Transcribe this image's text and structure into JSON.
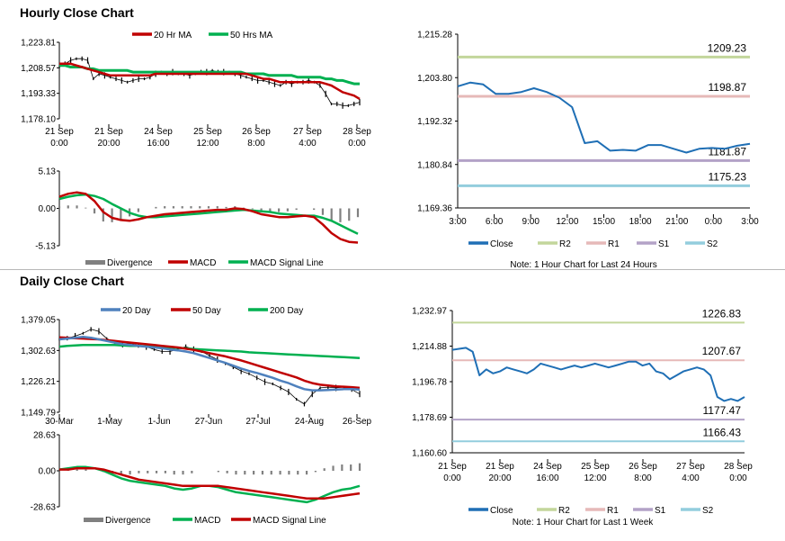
{
  "hourly": {
    "title": "Hourly Close Chart",
    "price_chart": {
      "type": "line",
      "legend": [
        "20 Hr MA",
        "50 Hrs MA"
      ],
      "y_ticks": [
        "1,223.81",
        "1,208.57",
        "1,193.33",
        "1,178.10"
      ],
      "ylim": [
        1178.1,
        1223.81
      ],
      "x_ticks": [
        [
          "21 Sep",
          "0:00"
        ],
        [
          "21 Sep",
          "20:00"
        ],
        [
          "24 Sep",
          "16:00"
        ],
        [
          "25 Sep",
          "12:00"
        ],
        [
          "26 Sep",
          "8:00"
        ],
        [
          "27 Sep",
          "4:00"
        ],
        [
          "28 Sep",
          "0:00"
        ]
      ],
      "series": [
        {
          "name": "Price",
          "values": [
            1209,
            1211,
            1213,
            1214,
            1214,
            1213,
            1202,
            1205,
            1204,
            1203,
            1202,
            1201,
            1200,
            1201,
            1202,
            1202,
            1203,
            1205,
            1206,
            1205,
            1206,
            1205,
            1205,
            1204,
            1205,
            1206,
            1206,
            1207,
            1206,
            1206,
            1206,
            1205,
            1204,
            1203,
            1202,
            1201,
            1201,
            1200,
            1199,
            1198,
            1200,
            1199,
            1200,
            1200,
            1201,
            1200,
            1198,
            1193,
            1187,
            1187,
            1186,
            1186,
            1187,
            1188
          ]
        },
        {
          "name": "20 Hr MA",
          "values": [
            1211,
            1211,
            1211,
            1210,
            1209,
            1208,
            1207,
            1206,
            1205,
            1204,
            1204,
            1204,
            1204,
            1204,
            1204,
            1204,
            1204,
            1205,
            1205,
            1205,
            1205,
            1205,
            1205,
            1205,
            1205,
            1205,
            1205,
            1205,
            1205,
            1205,
            1205,
            1205,
            1205,
            1205,
            1204,
            1203,
            1202,
            1202,
            1201,
            1200,
            1200,
            1200,
            1200,
            1200,
            1200,
            1200,
            1200,
            1199,
            1198,
            1196,
            1194,
            1193,
            1192,
            1190
          ]
        },
        {
          "name": "50 Hrs MA",
          "values": [
            1210,
            1210,
            1209,
            1209,
            1209,
            1208,
            1208,
            1207,
            1207,
            1207,
            1207,
            1207,
            1207,
            1206,
            1206,
            1206,
            1206,
            1206,
            1206,
            1206,
            1206,
            1206,
            1206,
            1206,
            1206,
            1206,
            1206,
            1206,
            1206,
            1206,
            1206,
            1206,
            1206,
            1205,
            1205,
            1205,
            1205,
            1204,
            1204,
            1204,
            1204,
            1204,
            1203,
            1203,
            1203,
            1203,
            1203,
            1202,
            1202,
            1201,
            1201,
            1200,
            1199,
            1199
          ]
        }
      ]
    },
    "macd_chart": {
      "type": "line",
      "legend": [
        "Divergence",
        "MACD",
        "MACD Signal Line"
      ],
      "y_ticks": [
        "5.13",
        "0.00",
        "-5.13"
      ],
      "ylim": [
        -5.13,
        5.13
      ],
      "series": [
        {
          "name": "MACD",
          "values": [
            1.6,
            2.0,
            2.2,
            2.0,
            1.0,
            -0.5,
            -1.3,
            -1.6,
            -1.7,
            -1.5,
            -1.2,
            -1.0,
            -0.8,
            -0.7,
            -0.6,
            -0.5,
            -0.4,
            -0.3,
            -0.2,
            -0.2,
            0.0,
            -0.1,
            -0.4,
            -0.8,
            -1.0,
            -1.2,
            -1.2,
            -1.1,
            -1.0,
            -1.2,
            -2.2,
            -3.4,
            -4.2,
            -4.6,
            -4.7
          ]
        },
        {
          "name": "MACD Signal Line",
          "values": [
            1.3,
            1.6,
            1.8,
            1.9,
            1.7,
            1.3,
            0.6,
            0.0,
            -0.6,
            -1.0,
            -1.2,
            -1.2,
            -1.1,
            -1.0,
            -0.9,
            -0.8,
            -0.7,
            -0.6,
            -0.5,
            -0.4,
            -0.3,
            -0.2,
            -0.3,
            -0.4,
            -0.5,
            -0.7,
            -0.8,
            -0.9,
            -1.0,
            -1.0,
            -1.3,
            -1.7,
            -2.3,
            -2.9,
            -3.5
          ]
        },
        {
          "name": "Divergence",
          "values": [
            0.3,
            0.4,
            0.4,
            0.1,
            -0.7,
            -1.8,
            -1.9,
            -1.6,
            -1.1,
            -0.5,
            0.0,
            0.2,
            0.3,
            0.3,
            0.3,
            0.3,
            0.3,
            0.3,
            0.3,
            0.2,
            0.3,
            0.1,
            -0.1,
            -0.4,
            -0.5,
            -0.5,
            -0.4,
            -0.2,
            0.0,
            -0.2,
            -0.9,
            -1.7,
            -1.9,
            -1.7,
            -1.2
          ]
        }
      ]
    },
    "sr_chart": {
      "type": "line",
      "y_ticks": [
        "1,215.28",
        "1,203.80",
        "1,192.32",
        "1,180.84",
        "1,169.36"
      ],
      "ylim": [
        1169.36,
        1215.28
      ],
      "x_ticks": [
        "3:00",
        "6:00",
        "9:00",
        "12:00",
        "15:00",
        "18:00",
        "21:00",
        "0:00",
        "3:00"
      ],
      "levels": [
        {
          "name": "R2",
          "value": 1209.23,
          "label": "1209.23",
          "color": "#c3d69b"
        },
        {
          "name": "R1",
          "value": 1198.87,
          "label": "1198.87",
          "color": "#e6b9b8"
        },
        {
          "name": "S1",
          "value": 1181.87,
          "label": "1181.87",
          "color": "#b3a2c7"
        },
        {
          "name": "S2",
          "value": 1175.23,
          "label": "1175.23",
          "color": "#93cddd"
        }
      ],
      "series": [
        {
          "name": "Close",
          "values": [
            1201.5,
            1202.5,
            1202.0,
            1199.5,
            1199.5,
            1200.0,
            1201.0,
            1200.0,
            1198.5,
            1196.0,
            1186.5,
            1187.0,
            1184.5,
            1184.7,
            1184.5,
            1186.0,
            1186.0,
            1185.0,
            1184.0,
            1185.0,
            1185.2,
            1185.0,
            1185.8,
            1186.3
          ]
        }
      ],
      "legend": [
        "Close",
        "R2",
        "R1",
        "S1",
        "S2"
      ],
      "note": "Note: 1 Hour Chart for Last 24 Hours"
    }
  },
  "daily": {
    "title": "Daily Close Chart",
    "price_chart": {
      "type": "line",
      "legend": [
        "20 Day",
        "50 Day",
        "200 Day"
      ],
      "y_ticks": [
        "1,379.05",
        "1,302.63",
        "1,226.21",
        "1,149.79"
      ],
      "ylim": [
        1149.79,
        1379.05
      ],
      "x_ticks": [
        "30-Mar",
        "1-May",
        "1-Jun",
        "27-Jun",
        "27-Jul",
        "24-Aug",
        "26-Sep"
      ],
      "series": [
        {
          "name": "Price",
          "values": [
            1330,
            1333,
            1338,
            1345,
            1355,
            1350,
            1332,
            1322,
            1318,
            1320,
            1315,
            1312,
            1305,
            1300,
            1300,
            1306,
            1312,
            1305,
            1300,
            1290,
            1280,
            1270,
            1262,
            1252,
            1245,
            1235,
            1225,
            1220,
            1210,
            1200,
            1182,
            1170,
            1195,
            1210,
            1212,
            1210,
            1212,
            1206,
            1195
          ]
        },
        {
          "name": "20 Day",
          "values": [
            1330,
            1332,
            1334,
            1336,
            1334,
            1330,
            1326,
            1322,
            1318,
            1316,
            1314,
            1312,
            1310,
            1308,
            1305,
            1303,
            1300,
            1296,
            1290,
            1284,
            1278,
            1272,
            1265,
            1258,
            1252,
            1247,
            1241,
            1235,
            1228,
            1222,
            1214,
            1207,
            1204,
            1204,
            1205,
            1206,
            1207,
            1207,
            1206
          ]
        },
        {
          "name": "50 Day",
          "values": [
            1335,
            1334,
            1333,
            1332,
            1331,
            1330,
            1328,
            1326,
            1324,
            1322,
            1320,
            1318,
            1316,
            1314,
            1312,
            1310,
            1307,
            1304,
            1300,
            1296,
            1292,
            1288,
            1283,
            1278,
            1272,
            1266,
            1260,
            1254,
            1248,
            1242,
            1236,
            1228,
            1222,
            1218,
            1216,
            1214,
            1213,
            1212,
            1210
          ]
        },
        {
          "name": "200 Day",
          "values": [
            1312,
            1314,
            1315,
            1316,
            1316,
            1316,
            1316,
            1316,
            1315,
            1314,
            1314,
            1313,
            1312,
            1311,
            1310,
            1309,
            1308,
            1306,
            1305,
            1304,
            1303,
            1302,
            1301,
            1300,
            1298,
            1297,
            1296,
            1295,
            1294,
            1293,
            1292,
            1291,
            1290,
            1289,
            1288,
            1287,
            1286,
            1285,
            1284
          ]
        }
      ]
    },
    "macd_chart": {
      "type": "line",
      "legend": [
        "Divergence",
        "MACD",
        "MACD Signal Line"
      ],
      "y_ticks": [
        "28.63",
        "0.00",
        "-28.63"
      ],
      "ylim": [
        -28.63,
        28.63
      ],
      "series": [
        {
          "name": "MACD",
          "values": [
            1,
            2,
            3,
            3,
            2,
            0,
            -3,
            -6,
            -8,
            -9,
            -10,
            -11,
            -12,
            -14,
            -15,
            -14,
            -12,
            -12,
            -13,
            -15,
            -17,
            -18,
            -19,
            -20,
            -21,
            -22,
            -23,
            -24,
            -25,
            -23,
            -20,
            -17,
            -15,
            -14,
            -12
          ]
        },
        {
          "name": "MACD Signal Line",
          "values": [
            1,
            1,
            2,
            2,
            2,
            1,
            -1,
            -3,
            -5,
            -7,
            -8,
            -9,
            -10,
            -11,
            -12,
            -12,
            -12,
            -12,
            -12,
            -13,
            -14,
            -15,
            -16,
            -17,
            -18,
            -19,
            -20,
            -21,
            -22,
            -22,
            -22,
            -21,
            -20,
            -19,
            -18
          ]
        },
        {
          "name": "Divergence",
          "values": [
            0,
            1,
            1,
            1,
            0,
            -1,
            -2,
            -3,
            -3,
            -2,
            -2,
            -2,
            -2,
            -3,
            -3,
            -2,
            0,
            0,
            -1,
            -2,
            -3,
            -3,
            -3,
            -3,
            -3,
            -3,
            -3,
            -3,
            -3,
            -1,
            2,
            4,
            5,
            5,
            6
          ]
        }
      ]
    },
    "sr_chart": {
      "type": "line",
      "y_ticks": [
        "1,232.97",
        "1,214.88",
        "1,196.78",
        "1,178.69",
        "1,160.60"
      ],
      "ylim": [
        1160.6,
        1232.97
      ],
      "x_ticks": [
        [
          "21 Sep",
          "0:00"
        ],
        [
          "21 Sep",
          "20:00"
        ],
        [
          "24 Sep",
          "16:00"
        ],
        [
          "25 Sep",
          "12:00"
        ],
        [
          "26 Sep",
          "8:00"
        ],
        [
          "27 Sep",
          "4:00"
        ],
        [
          "28 Sep",
          "0:00"
        ]
      ],
      "levels": [
        {
          "name": "R2",
          "value": 1226.83,
          "label": "1226.83",
          "color": "#c3d69b"
        },
        {
          "name": "R1",
          "value": 1207.67,
          "label": "1207.67",
          "color": "#e6b9b8"
        },
        {
          "name": "S1",
          "value": 1177.47,
          "label": "1177.47",
          "color": "#b3a2c7"
        },
        {
          "name": "S2",
          "value": 1166.43,
          "label": "1166.43",
          "color": "#93cddd"
        }
      ],
      "series": [
        {
          "name": "Close",
          "values": [
            1213,
            1213.5,
            1214,
            1212,
            1200,
            1203,
            1201,
            1202,
            1204,
            1203,
            1202,
            1201,
            1203,
            1206,
            1205,
            1204,
            1203,
            1204,
            1205,
            1204,
            1205,
            1206,
            1205,
            1204,
            1205,
            1206,
            1207,
            1207,
            1205,
            1206,
            1202,
            1201,
            1198,
            1200,
            1202,
            1203,
            1204,
            1203,
            1200,
            1189,
            1187,
            1188,
            1187,
            1189
          ]
        }
      ],
      "legend": [
        "Close",
        "R2",
        "R1",
        "S1",
        "S2"
      ],
      "note": "Note: 1 Hour Chart for Last 1 Week"
    }
  },
  "colors": {
    "ma_short": "#c00000",
    "ma_long": "#00b050",
    "ma_blue": "#4f81bd",
    "price": "#000000",
    "close": "#1f6fb5",
    "divergence": "#808080"
  }
}
